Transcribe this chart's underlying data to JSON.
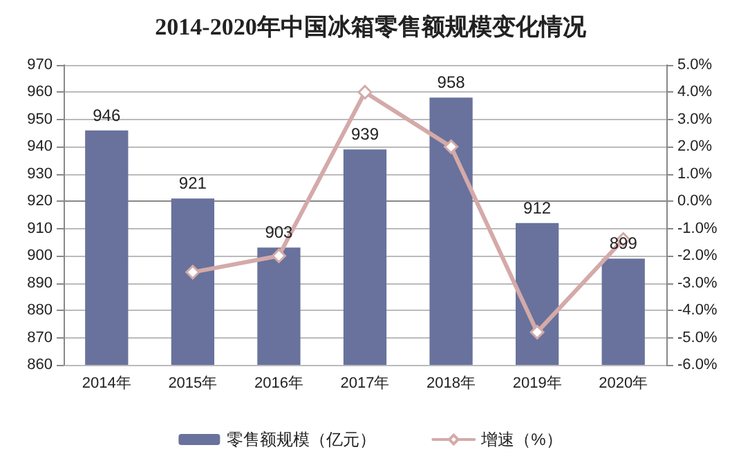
{
  "chart_data": {
    "type": "bar",
    "title": "2014-2020年中国冰箱零售额规模变化情况",
    "categories": [
      "2014年",
      "2015年",
      "2016年",
      "2017年",
      "2018年",
      "2019年",
      "2020年"
    ],
    "series": [
      {
        "name": "零售额规模（亿元）",
        "color": "#68729c",
        "values": [
          946,
          921,
          903,
          939,
          958,
          912,
          899
        ],
        "value_labels": [
          "946",
          "921",
          "903",
          "939",
          "958",
          "912",
          "899"
        ]
      },
      {
        "name": "增速（%）",
        "type": "line",
        "axis": "y2",
        "color": "#d4aaa9",
        "marker": "diamond",
        "values": [
          null,
          -2.6,
          -2.0,
          4.0,
          2.0,
          -4.8,
          -1.4
        ]
      }
    ],
    "ylim": [
      860,
      970
    ],
    "yticks": [
      860,
      870,
      880,
      890,
      900,
      910,
      920,
      930,
      940,
      950,
      960,
      970
    ],
    "y2lim": [
      -6,
      5
    ],
    "y2ticks": [
      {
        "value": -6,
        "label": "-6.0%"
      },
      {
        "value": -5,
        "label": "-5.0%"
      },
      {
        "value": -4,
        "label": "-4.0%"
      },
      {
        "value": -3,
        "label": "-3.0%"
      },
      {
        "value": -2,
        "label": "-2.0%"
      },
      {
        "value": -1,
        "label": "-1.0%"
      },
      {
        "value": 0,
        "label": "0.0%"
      },
      {
        "value": 1,
        "label": "1.0%"
      },
      {
        "value": 2,
        "label": "2.0%"
      },
      {
        "value": 3,
        "label": "3.0%"
      },
      {
        "value": 4,
        "label": "4.0%"
      },
      {
        "value": 5,
        "label": "5.0%"
      }
    ],
    "grid": "y",
    "legend": "bottom"
  }
}
